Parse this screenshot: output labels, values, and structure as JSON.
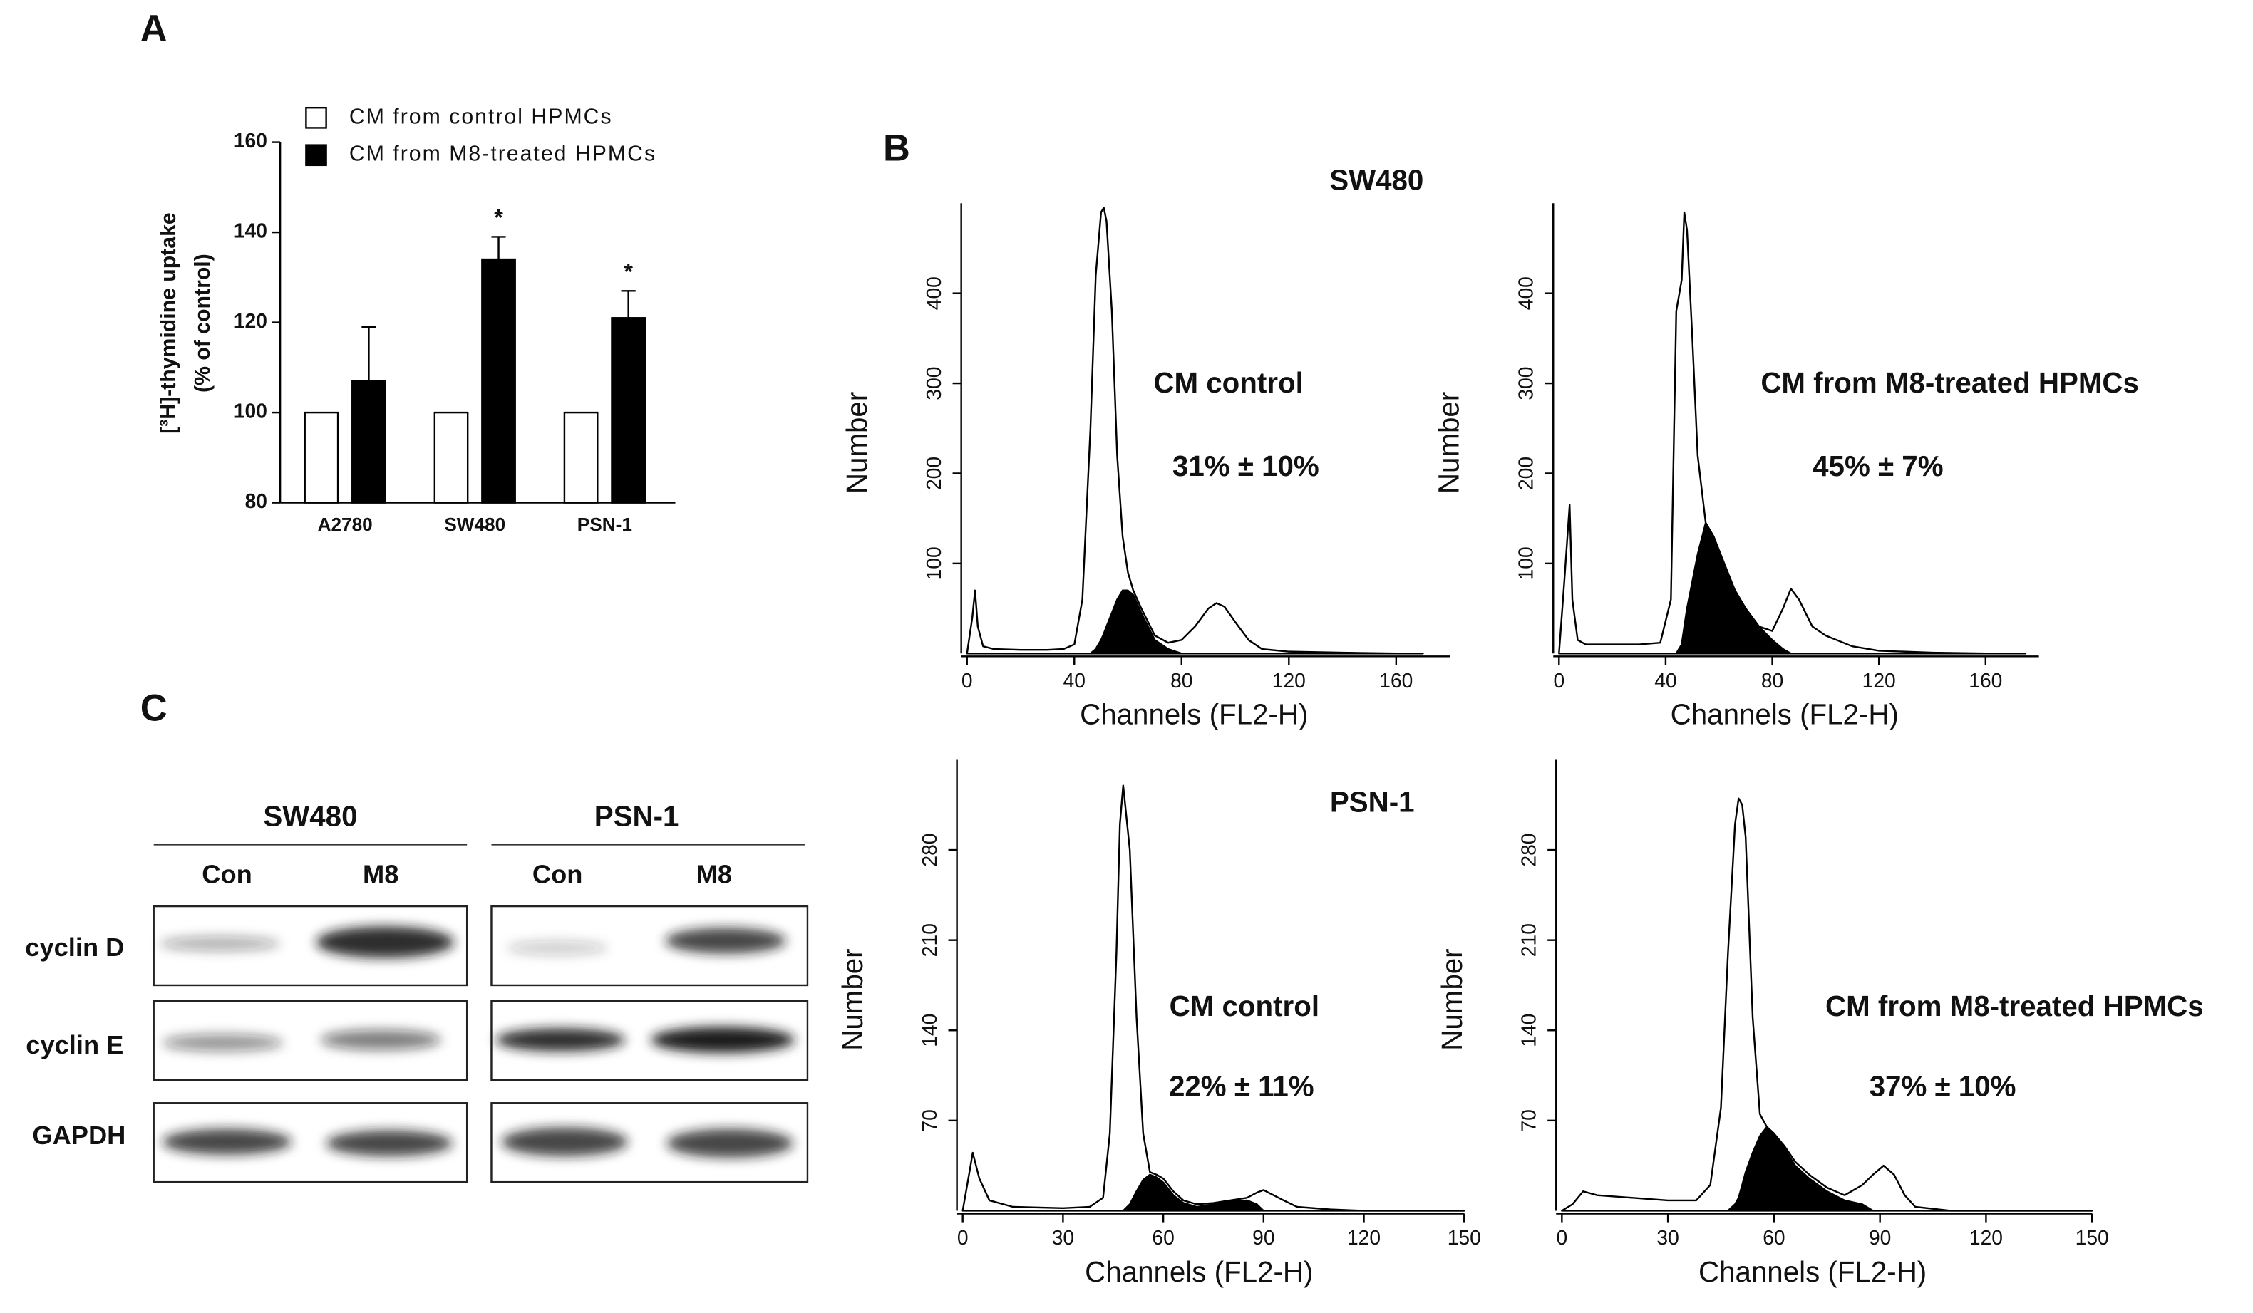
{
  "panel_labels": [
    "A",
    "B",
    "C"
  ],
  "chart_data": [
    {
      "type": "bar",
      "ylabel": [
        "[³H]-thymidine uptake",
        "(% of control)"
      ],
      "categories": [
        "A2780",
        "SW480",
        "PSN-1"
      ],
      "series": [
        {
          "name": "CM from control HPMCs",
          "color": "#ffffff",
          "values": [
            100,
            100,
            100
          ]
        },
        {
          "name": "CM from M8-treated HPMCs",
          "color": "#000000",
          "values": [
            107,
            134,
            121
          ],
          "errors": [
            12,
            5,
            6
          ],
          "significance": [
            null,
            "*",
            "*"
          ]
        }
      ],
      "ylim": [
        80,
        160
      ],
      "yticks": [
        80,
        100,
        120,
        140,
        160
      ]
    },
    {
      "type": "area",
      "title": "SW480",
      "annotations": [
        "CM control",
        "31% ± 10%"
      ],
      "xlabel": "Channels (FL2-H)",
      "ylabel": "Number",
      "x": [
        0,
        2,
        3,
        4,
        6,
        10,
        20,
        30,
        36,
        40,
        43,
        46,
        48,
        50,
        51,
        52,
        54,
        56,
        58,
        60,
        62,
        65,
        70,
        75,
        80,
        85,
        90,
        93,
        96,
        100,
        105,
        110,
        120,
        140,
        160,
        170
      ],
      "series": [
        {
          "color": "#000000",
          "fill": false,
          "values": [
            0,
            40,
            70,
            30,
            8,
            5,
            4,
            4,
            5,
            10,
            60,
            250,
            420,
            490,
            495,
            480,
            380,
            220,
            130,
            90,
            70,
            50,
            20,
            12,
            15,
            30,
            50,
            56,
            52,
            35,
            15,
            5,
            2,
            1,
            0,
            0
          ]
        },
        {
          "color": "#000000",
          "fill": true,
          "values": [
            0,
            0,
            0,
            0,
            0,
            0,
            0,
            0,
            0,
            0,
            0,
            0,
            5,
            15,
            22,
            30,
            45,
            60,
            70,
            70,
            65,
            45,
            15,
            5,
            0,
            0,
            0,
            0,
            0,
            0,
            0,
            0,
            0,
            0,
            0,
            0
          ]
        }
      ],
      "xlim": [
        0,
        180
      ],
      "xticks": [
        0,
        40,
        80,
        120,
        160
      ],
      "ylim": [
        0,
        500
      ],
      "yticks": [
        100,
        200,
        300,
        400
      ]
    },
    {
      "type": "area",
      "annotations": [
        "CM from M8-treated HPMCs",
        "45% ± 7%"
      ],
      "xlabel": "Channels (FL2-H)",
      "ylabel": "Number",
      "x": [
        0,
        2,
        4,
        5,
        7,
        10,
        20,
        30,
        38,
        42,
        44,
        46,
        47,
        48,
        50,
        52,
        55,
        58,
        62,
        66,
        70,
        75,
        80,
        84,
        87,
        90,
        95,
        100,
        110,
        120,
        140,
        160,
        175
      ],
      "series": [
        {
          "color": "#000000",
          "fill": false,
          "values": [
            0,
            80,
            165,
            60,
            15,
            10,
            10,
            10,
            12,
            60,
            380,
            415,
            490,
            470,
            350,
            220,
            145,
            130,
            100,
            70,
            50,
            30,
            25,
            50,
            72,
            60,
            30,
            20,
            8,
            3,
            1,
            0,
            0
          ]
        },
        {
          "color": "#000000",
          "fill": true,
          "values": [
            0,
            0,
            0,
            0,
            0,
            0,
            0,
            0,
            0,
            0,
            0,
            10,
            30,
            50,
            80,
            110,
            145,
            130,
            95,
            70,
            50,
            30,
            15,
            5,
            0,
            0,
            0,
            0,
            0,
            0,
            0,
            0,
            0
          ]
        }
      ],
      "xlim": [
        0,
        180
      ],
      "xticks": [
        0,
        40,
        80,
        120,
        160
      ],
      "ylim": [
        0,
        500
      ],
      "yticks": [
        100,
        200,
        300,
        400
      ]
    },
    {
      "type": "area",
      "title": "PSN-1",
      "annotations": [
        "CM control",
        "22% ± 11%"
      ],
      "xlabel": "Channels (FL2-H)",
      "ylabel": "Number",
      "x": [
        0,
        2,
        3,
        5,
        8,
        15,
        30,
        38,
        42,
        44,
        46,
        47,
        48,
        50,
        52,
        54,
        56,
        58,
        60,
        63,
        66,
        70,
        75,
        80,
        85,
        88,
        90,
        93,
        96,
        100,
        110,
        120,
        150
      ],
      "series": [
        {
          "color": "#000000",
          "fill": false,
          "values": [
            0,
            30,
            45,
            25,
            8,
            3,
            2,
            3,
            10,
            60,
            200,
            300,
            330,
            280,
            150,
            60,
            30,
            28,
            25,
            15,
            8,
            5,
            6,
            8,
            10,
            14,
            16,
            12,
            8,
            3,
            1,
            0,
            0
          ]
        },
        {
          "color": "#000000",
          "fill": true,
          "values": [
            0,
            0,
            0,
            0,
            0,
            0,
            0,
            0,
            0,
            0,
            0,
            0,
            0,
            5,
            15,
            24,
            28,
            26,
            22,
            12,
            6,
            3,
            5,
            7,
            8,
            5,
            0,
            0,
            0,
            0,
            0,
            0,
            0
          ]
        }
      ],
      "xlim": [
        0,
        150
      ],
      "xticks": [
        0,
        30,
        60,
        90,
        120,
        150
      ],
      "ylim": [
        0,
        350
      ],
      "yticks": [
        70,
        140,
        210,
        280
      ]
    },
    {
      "type": "area",
      "annotations": [
        "CM from M8-treated HPMCs",
        "37% ± 10%"
      ],
      "xlabel": "Channels (FL2-H)",
      "ylabel": "Number",
      "x": [
        0,
        3,
        6,
        10,
        20,
        30,
        38,
        42,
        45,
        47,
        49,
        50,
        51,
        52,
        54,
        56,
        58,
        60,
        63,
        66,
        70,
        75,
        80,
        85,
        88,
        91,
        94,
        97,
        100,
        110,
        150
      ],
      "series": [
        {
          "color": "#000000",
          "fill": false,
          "values": [
            0,
            5,
            15,
            12,
            10,
            8,
            8,
            20,
            80,
            200,
            300,
            320,
            315,
            290,
            150,
            75,
            65,
            60,
            50,
            38,
            28,
            18,
            12,
            20,
            28,
            35,
            28,
            12,
            3,
            0,
            0
          ]
        },
        {
          "color": "#000000",
          "fill": true,
          "values": [
            0,
            0,
            0,
            0,
            0,
            0,
            0,
            0,
            0,
            0,
            5,
            10,
            20,
            30,
            45,
            58,
            65,
            60,
            48,
            35,
            25,
            15,
            8,
            5,
            0,
            0,
            0,
            0,
            0,
            0,
            0
          ]
        }
      ],
      "xlim": [
        0,
        150
      ],
      "xticks": [
        0,
        30,
        60,
        90,
        120,
        150
      ],
      "ylim": [
        0,
        350
      ],
      "yticks": [
        70,
        140,
        210,
        280
      ]
    }
  ],
  "blot": {
    "cell_lines": [
      "SW480",
      "PSN-1"
    ],
    "lanes": [
      "Con",
      "M8",
      "Con",
      "M8"
    ],
    "proteins": [
      "cyclin D",
      "cyclin E",
      "GAPDH"
    ]
  }
}
